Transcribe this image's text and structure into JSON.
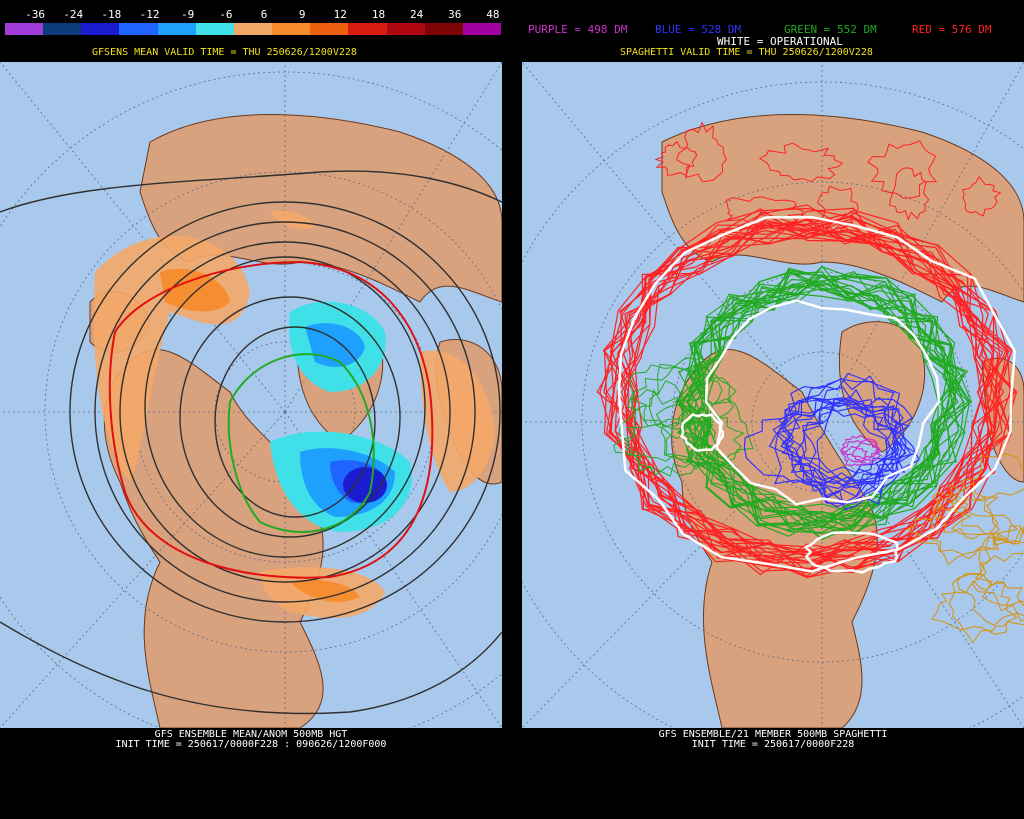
{
  "left": {
    "colorbar": {
      "labels": [
        "-36",
        "-24",
        "-18",
        "-12",
        "-9",
        "-6",
        "6",
        "9",
        "12",
        "18",
        "24",
        "36",
        "48"
      ],
      "colors": [
        "#a03ad8",
        "#0b3c7a",
        "#1b1bd0",
        "#1e64ff",
        "#1ea0ff",
        "#3fe0e8",
        "#f4a868",
        "#f78a2a",
        "#ee6010",
        "#d81c10",
        "#b00810",
        "#7c0404",
        "#a000a0"
      ]
    },
    "subtitle": "GFSENS MEAN VALID TIME = THU 250626/1200V228",
    "footer_line1": "GFS ENSEMBLE MEAN/ANOM 500MB HGT",
    "footer_line2": "INIT TIME = 250617/0000F228 : 090626/1200F000"
  },
  "right": {
    "legend": {
      "purple": "PURPLE = 498 DM",
      "blue": "BLUE = 528 DM",
      "green": "GREEN = 552 DM",
      "red": "RED = 576 DM",
      "white": "WHITE = OPERATIONAL"
    },
    "subtitle": "SPAGHETTI VALID TIME = THU 250626/1200V228",
    "footer_line1": "GFS ENSEMBLE/21 MEMBER 500MB SPAGHETTI",
    "footer_line2": "INIT TIME = 250617/0000F228"
  },
  "colors": {
    "ocean": "#a9c9ec",
    "land": "#d9a27e",
    "border": "#6a3a1c",
    "grid": "#5a6a8a",
    "purple": "#cc33cc",
    "blue": "#3333ff",
    "green": "#22aa22",
    "red": "#ff2222",
    "white": "#ffffff",
    "subtitle": "#f0e020"
  }
}
